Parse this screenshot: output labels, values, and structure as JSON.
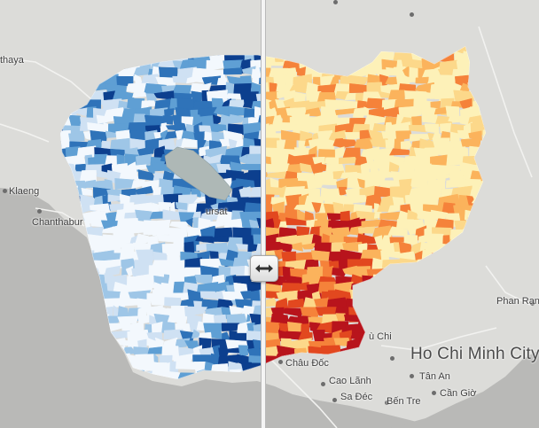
{
  "map": {
    "left_theme": "blue",
    "right_theme": "heat",
    "colors": {
      "sea": "#b9b9b7",
      "land": "#dcdcd9",
      "blue_scale": [
        "#f3f8fd",
        "#cfe1f3",
        "#9ec6e7",
        "#5f9fd4",
        "#2f73b9",
        "#0c3f8e"
      ],
      "heat_scale": [
        "#fdf1b8",
        "#fcd88a",
        "#fbb35c",
        "#f5823a",
        "#e2481f",
        "#b8141c"
      ],
      "lake": "#aeb8b6"
    }
  },
  "labels": {
    "thaya": "thaya",
    "klaeng": "Klaeng",
    "chanthaburi": "Chanthabur",
    "pursat": "ursat",
    "chau_doc": "Châu Đốc",
    "cao_lanh": "Cao Lãnh",
    "tan_an": "Tân An",
    "sa_dec": "Sa Đéc",
    "ben_tre": "Bến Tre",
    "can_gio": "Cần Giờ",
    "phan_rang": "Phan Rang",
    "hcmc": "Ho Chi Minh City",
    "chi_fragment": "ù Chi"
  },
  "divider": {
    "icon": "horizontal-double-arrow-icon"
  }
}
